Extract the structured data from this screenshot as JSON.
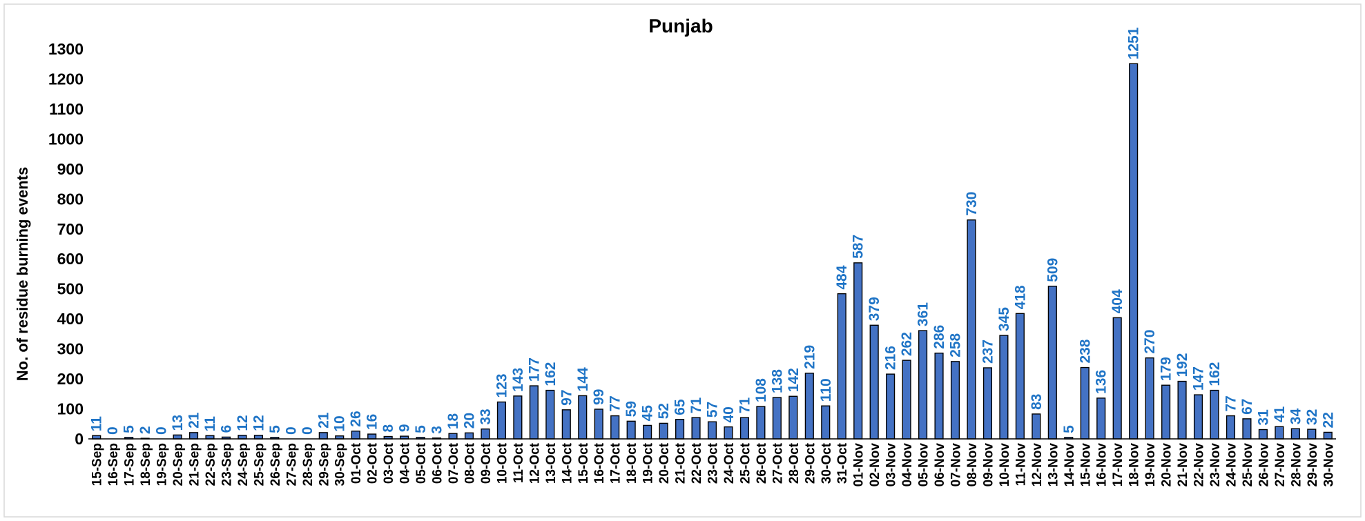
{
  "chart_data": {
    "type": "bar",
    "title": "Punjab",
    "ylabel": "No. of residue burning events",
    "xlabel": "",
    "ylim": [
      0,
      1300
    ],
    "yticks": [
      0,
      100,
      200,
      300,
      400,
      500,
      600,
      700,
      800,
      900,
      1000,
      1100,
      1200,
      1300
    ],
    "grid": false,
    "legend": "none",
    "bar_color": "#4472C4",
    "label_color": "#1F74C6",
    "categories": [
      "15-Sep",
      "16-Sep",
      "17-Sep",
      "18-Sep",
      "19-Sep",
      "20-Sep",
      "21-Sep",
      "22-Sep",
      "23-Sep",
      "24-Sep",
      "25-Sep",
      "26-Sep",
      "27-Sep",
      "28-Sep",
      "29-Sep",
      "30-Sep",
      "01-Oct",
      "02-Oct",
      "03-Oct",
      "04-Oct",
      "05-Oct",
      "06-Oct",
      "07-Oct",
      "08-Oct",
      "09-Oct",
      "10-Oct",
      "11-Oct",
      "12-Oct",
      "13-Oct",
      "14-Oct",
      "15-Oct",
      "16-Oct",
      "17-Oct",
      "18-Oct",
      "19-Oct",
      "20-Oct",
      "21-Oct",
      "22-Oct",
      "23-Oct",
      "24-Oct",
      "25-Oct",
      "26-Oct",
      "27-Oct",
      "28-Oct",
      "29-Oct",
      "30-Oct",
      "31-Oct",
      "01-Nov",
      "02-Nov",
      "03-Nov",
      "04-Nov",
      "05-Nov",
      "06-Nov",
      "07-Nov",
      "08-Nov",
      "09-Nov",
      "10-Nov",
      "11-Nov",
      "12-Nov",
      "13-Nov",
      "14-Nov",
      "15-Nov",
      "16-Nov",
      "17-Nov",
      "18-Nov",
      "19-Nov",
      "20-Nov",
      "21-Nov",
      "22-Nov",
      "23-Nov",
      "24-Nov",
      "25-Nov",
      "26-Nov",
      "27-Nov",
      "28-Nov",
      "29-Nov",
      "30-Nov"
    ],
    "values": [
      11,
      0,
      5,
      2,
      0,
      13,
      21,
      11,
      6,
      12,
      12,
      5,
      0,
      0,
      21,
      10,
      26,
      16,
      8,
      9,
      5,
      3,
      18,
      20,
      33,
      123,
      143,
      177,
      162,
      97,
      144,
      99,
      77,
      59,
      45,
      52,
      65,
      71,
      57,
      40,
      71,
      108,
      138,
      142,
      219,
      110,
      484,
      587,
      379,
      216,
      262,
      361,
      286,
      258,
      730,
      237,
      345,
      418,
      83,
      509,
      5,
      238,
      136,
      404,
      1251,
      270,
      179,
      192,
      147,
      162,
      77,
      67,
      31,
      41,
      34,
      32,
      22
    ]
  }
}
